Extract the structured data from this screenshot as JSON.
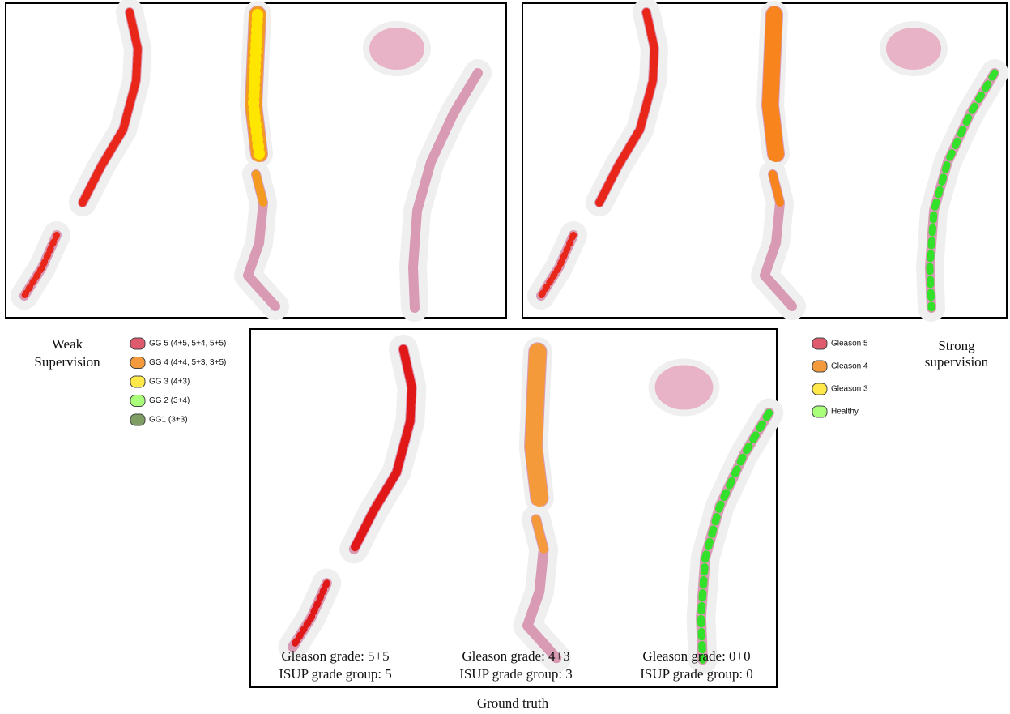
{
  "weak_label": [
    "Weak",
    "Supervision"
  ],
  "strong_label": [
    "Strong",
    "supervision"
  ],
  "weak_legend": [
    {
      "label": "GG 5 (4+5, 5+4, 5+5)",
      "color": "#e05a6e"
    },
    {
      "label": "GG 4 (4+4, 5+3, 3+5)",
      "color": "#f39a3c"
    },
    {
      "label": "GG 3 (4+3)",
      "color": "#ffe84a"
    },
    {
      "label": "GG 2 (3+4)",
      "color": "#a9ff7a"
    },
    {
      "label": "GG1 (3+3)",
      "color": "#7f9e63"
    }
  ],
  "strong_legend": [
    {
      "label": "Gleason 5",
      "color": "#e05a6e"
    },
    {
      "label": "Gleason 4",
      "color": "#f39a3c"
    },
    {
      "label": "Gleason 3",
      "color": "#ffe84a"
    },
    {
      "label": "Healthy",
      "color": "#a9ff7a"
    }
  ],
  "ground_truth": {
    "title": "Ground truth",
    "cases": [
      {
        "gleason": "Gleason grade: 5+5",
        "isup": "ISUP grade group: 5"
      },
      {
        "gleason": "Gleason grade: 4+3",
        "isup": "ISUP grade group: 3"
      },
      {
        "gleason": "Gleason grade: 0+0",
        "isup": "ISUP grade group: 0"
      }
    ]
  }
}
